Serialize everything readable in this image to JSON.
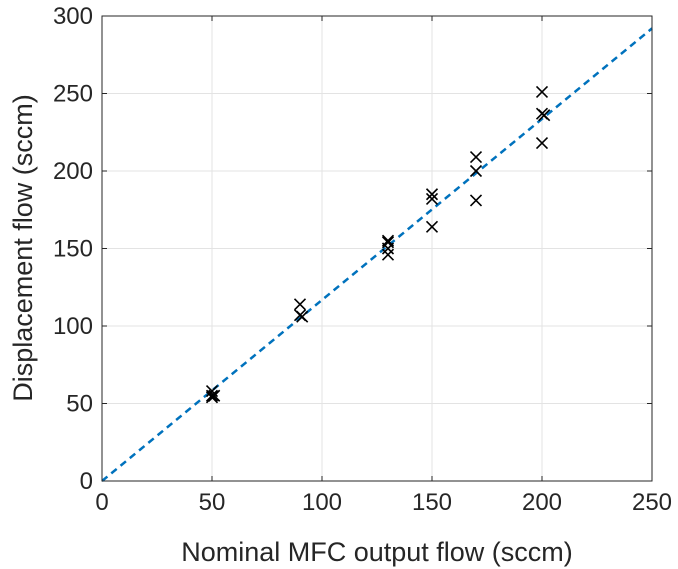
{
  "chart_data": {
    "type": "scatter",
    "title": "",
    "xlabel": "Nominal MFC output flow (sccm)",
    "ylabel": "Displacement flow (sccm)",
    "xlim": [
      0,
      250
    ],
    "ylim": [
      0,
      300
    ],
    "xticks": [
      0,
      50,
      100,
      150,
      200,
      250
    ],
    "yticks": [
      0,
      50,
      100,
      150,
      200,
      250,
      300
    ],
    "grid": true,
    "legend": "none",
    "marker": "x",
    "marker_color": "#000000",
    "series": [
      {
        "points": [
          [
            50,
            58
          ],
          [
            50,
            55
          ],
          [
            51,
            55
          ],
          [
            50,
            54
          ],
          [
            90,
            114
          ],
          [
            90,
            107
          ],
          [
            91,
            106
          ],
          [
            130,
            155
          ],
          [
            130,
            154
          ],
          [
            130,
            150
          ],
          [
            130,
            146
          ],
          [
            150,
            185
          ],
          [
            150,
            182
          ],
          [
            150,
            164
          ],
          [
            170,
            209
          ],
          [
            170,
            200
          ],
          [
            170,
            181
          ],
          [
            200,
            251
          ],
          [
            200,
            237
          ],
          [
            201,
            236
          ],
          [
            200,
            218
          ]
        ]
      }
    ],
    "reference_line": {
      "style": "dashed",
      "color": "#0072BD",
      "x": [
        0,
        250
      ],
      "y": [
        0,
        292
      ]
    }
  }
}
